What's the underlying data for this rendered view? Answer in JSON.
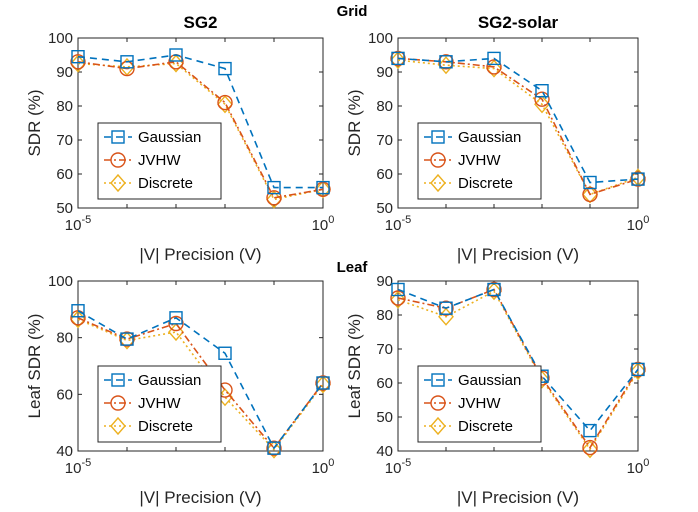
{
  "section_labels": [
    "Grid",
    "Leaf"
  ],
  "legend": [
    "Gaussian",
    "JVHW",
    "Discrete"
  ],
  "colors": {
    "gaussian": "#0072BD",
    "jvhw": "#D95319",
    "discrete": "#EDB120"
  },
  "chart_data": [
    {
      "type": "line",
      "title": "SG2",
      "xlabel": "|V| Precision (V)",
      "ylabel": "SDR (%)",
      "xscale": "log",
      "xlim": [
        1e-05,
        1
      ],
      "ylim": [
        50,
        100
      ],
      "xticks": [
        {
          "base": "10",
          "exp": "-5"
        },
        {
          "base": "10",
          "exp": "0"
        }
      ],
      "yticks": [
        50,
        60,
        70,
        80,
        90,
        100
      ],
      "legend_position": "bottom-left",
      "x": [
        1e-05,
        0.0001,
        0.001,
        0.01,
        0.1,
        1
      ],
      "series": [
        {
          "name": "Gaussian",
          "values": [
            94.5,
            93,
            95,
            91,
            56,
            56
          ]
        },
        {
          "name": "JVHW",
          "values": [
            93,
            91,
            93,
            81,
            53,
            55.5
          ]
        },
        {
          "name": "Discrete",
          "values": [
            92.5,
            91.5,
            92.5,
            80.5,
            52.5,
            55.5
          ]
        }
      ]
    },
    {
      "type": "line",
      "title": "SG2-solar",
      "xlabel": "|V| Precision (V)",
      "ylabel": "SDR (%)",
      "xscale": "log",
      "xlim": [
        1e-05,
        1
      ],
      "ylim": [
        50,
        100
      ],
      "xticks": [
        {
          "base": "10",
          "exp": "-5"
        },
        {
          "base": "10",
          "exp": "0"
        }
      ],
      "yticks": [
        50,
        60,
        70,
        80,
        90,
        100
      ],
      "legend_position": "bottom-left",
      "x": [
        1e-05,
        0.0001,
        0.001,
        0.01,
        0.1,
        1
      ],
      "series": [
        {
          "name": "Gaussian",
          "values": [
            94,
            93,
            94,
            84.5,
            57.5,
            58.5
          ]
        },
        {
          "name": "JVHW",
          "values": [
            94,
            93,
            91.5,
            82,
            54,
            58.5
          ]
        },
        {
          "name": "Discrete",
          "values": [
            93.5,
            92,
            91,
            80.5,
            54,
            59
          ]
        }
      ]
    },
    {
      "type": "line",
      "title": "",
      "xlabel": "|V| Precision (V)",
      "ylabel": "Leaf SDR (%)",
      "xscale": "log",
      "xlim": [
        1e-05,
        1
      ],
      "ylim": [
        40,
        100
      ],
      "xticks": [
        {
          "base": "10",
          "exp": "-5"
        },
        {
          "base": "10",
          "exp": "0"
        }
      ],
      "yticks": [
        40,
        60,
        80,
        100
      ],
      "legend_position": "bottom-left",
      "x": [
        1e-05,
        0.0001,
        0.001,
        0.01,
        0.1,
        1
      ],
      "series": [
        {
          "name": "Gaussian",
          "values": [
            89.5,
            79.5,
            87,
            74.5,
            41,
            64
          ]
        },
        {
          "name": "JVHW",
          "values": [
            87,
            79.5,
            85,
            61.5,
            41,
            64
          ]
        },
        {
          "name": "Discrete",
          "values": [
            86.5,
            79,
            82,
            59,
            40.5,
            63.5
          ]
        }
      ]
    },
    {
      "type": "line",
      "title": "",
      "xlabel": "|V| Precision (V)",
      "ylabel": "Leaf SDR (%)",
      "xscale": "log",
      "xlim": [
        1e-05,
        1
      ],
      "ylim": [
        40,
        90
      ],
      "xticks": [
        {
          "base": "10",
          "exp": "-5"
        },
        {
          "base": "10",
          "exp": "0"
        }
      ],
      "yticks": [
        40,
        50,
        60,
        70,
        80,
        90
      ],
      "legend_position": "bottom-left",
      "x": [
        1e-05,
        0.0001,
        0.001,
        0.01,
        0.1,
        1
      ],
      "series": [
        {
          "name": "Gaussian",
          "values": [
            87.5,
            82,
            87.5,
            62,
            46,
            64
          ]
        },
        {
          "name": "JVHW",
          "values": [
            85,
            82,
            87.5,
            61.5,
            41,
            64
          ]
        },
        {
          "name": "Discrete",
          "values": [
            84.5,
            79.5,
            87,
            61,
            40.5,
            63.5
          ]
        }
      ]
    }
  ]
}
